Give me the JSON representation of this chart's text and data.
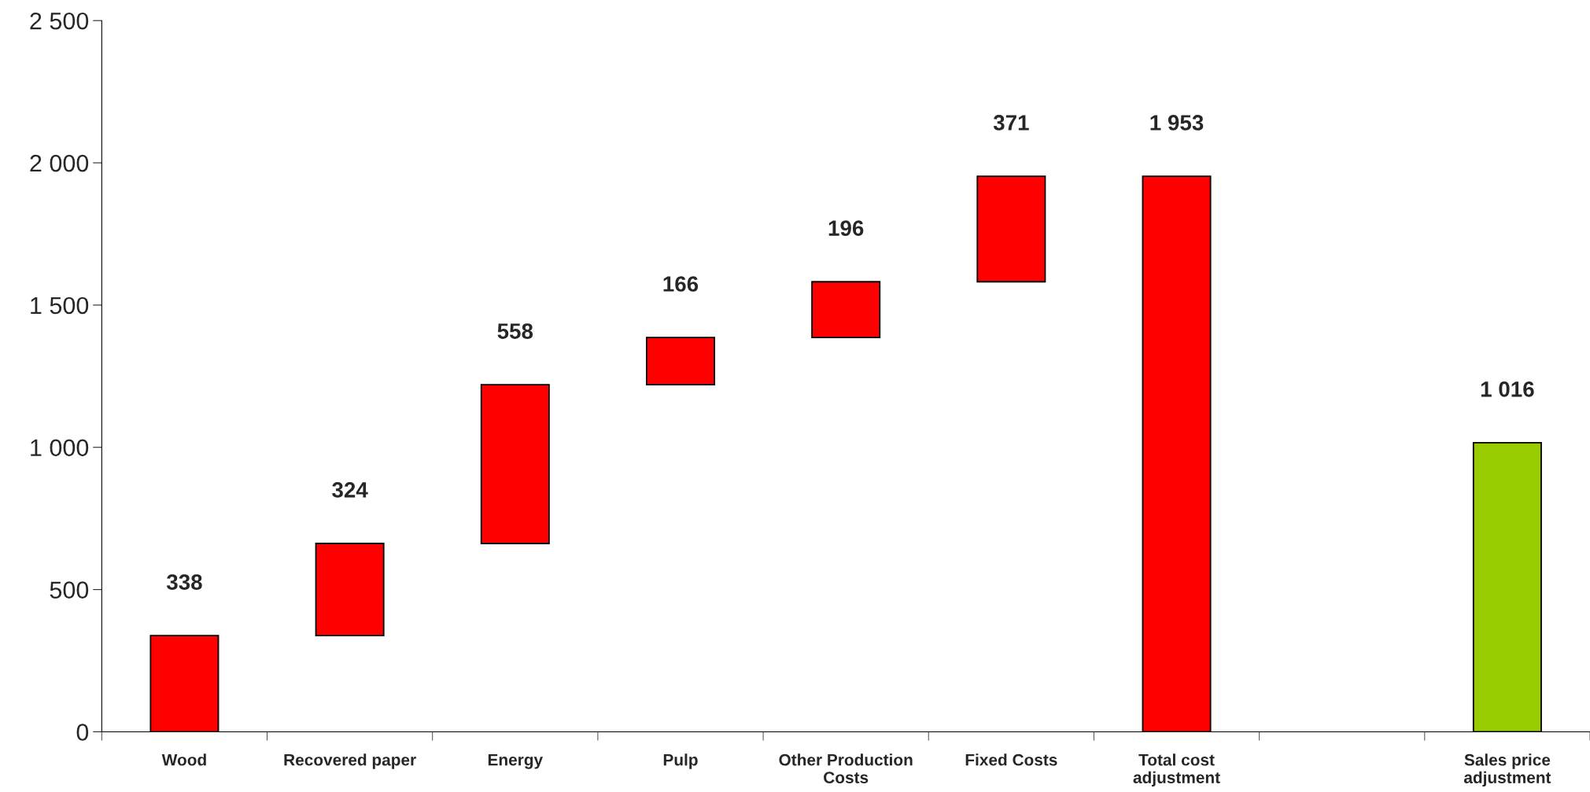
{
  "chart_data": {
    "type": "bar",
    "categories": [
      "Wood",
      "Recovered paper",
      "Energy",
      "Pulp",
      "Other Production\nCosts",
      "Fixed Costs",
      "Total cost\nadjustment",
      null,
      "Sales price\nadjustment"
    ],
    "values": [
      338,
      324,
      558,
      166,
      196,
      371,
      1953,
      null,
      1016
    ],
    "base": [
      0,
      338,
      662,
      1220,
      1386,
      1582,
      0,
      null,
      0
    ],
    "colors": [
      "#ff0000",
      "#ff0000",
      "#ff0000",
      "#ff0000",
      "#ff0000",
      "#ff0000",
      "#ff0000",
      null,
      "#99cc00"
    ],
    "value_labels": [
      "338",
      "324",
      "558",
      "166",
      "196",
      "371",
      "1 953",
      null,
      "1 016"
    ],
    "ylim": [
      0,
      2500
    ],
    "yticks": [
      0,
      {
        "value": 500,
        "label": "500"
      },
      {
        "value": 1000,
        "label": "1 000"
      },
      {
        "value": 1500,
        "label": "1 500"
      },
      {
        "value": 2000,
        "label": "2 000"
      },
      {
        "value": 2500,
        "label": "2 500"
      }
    ],
    "grid": false,
    "legend": false
  }
}
